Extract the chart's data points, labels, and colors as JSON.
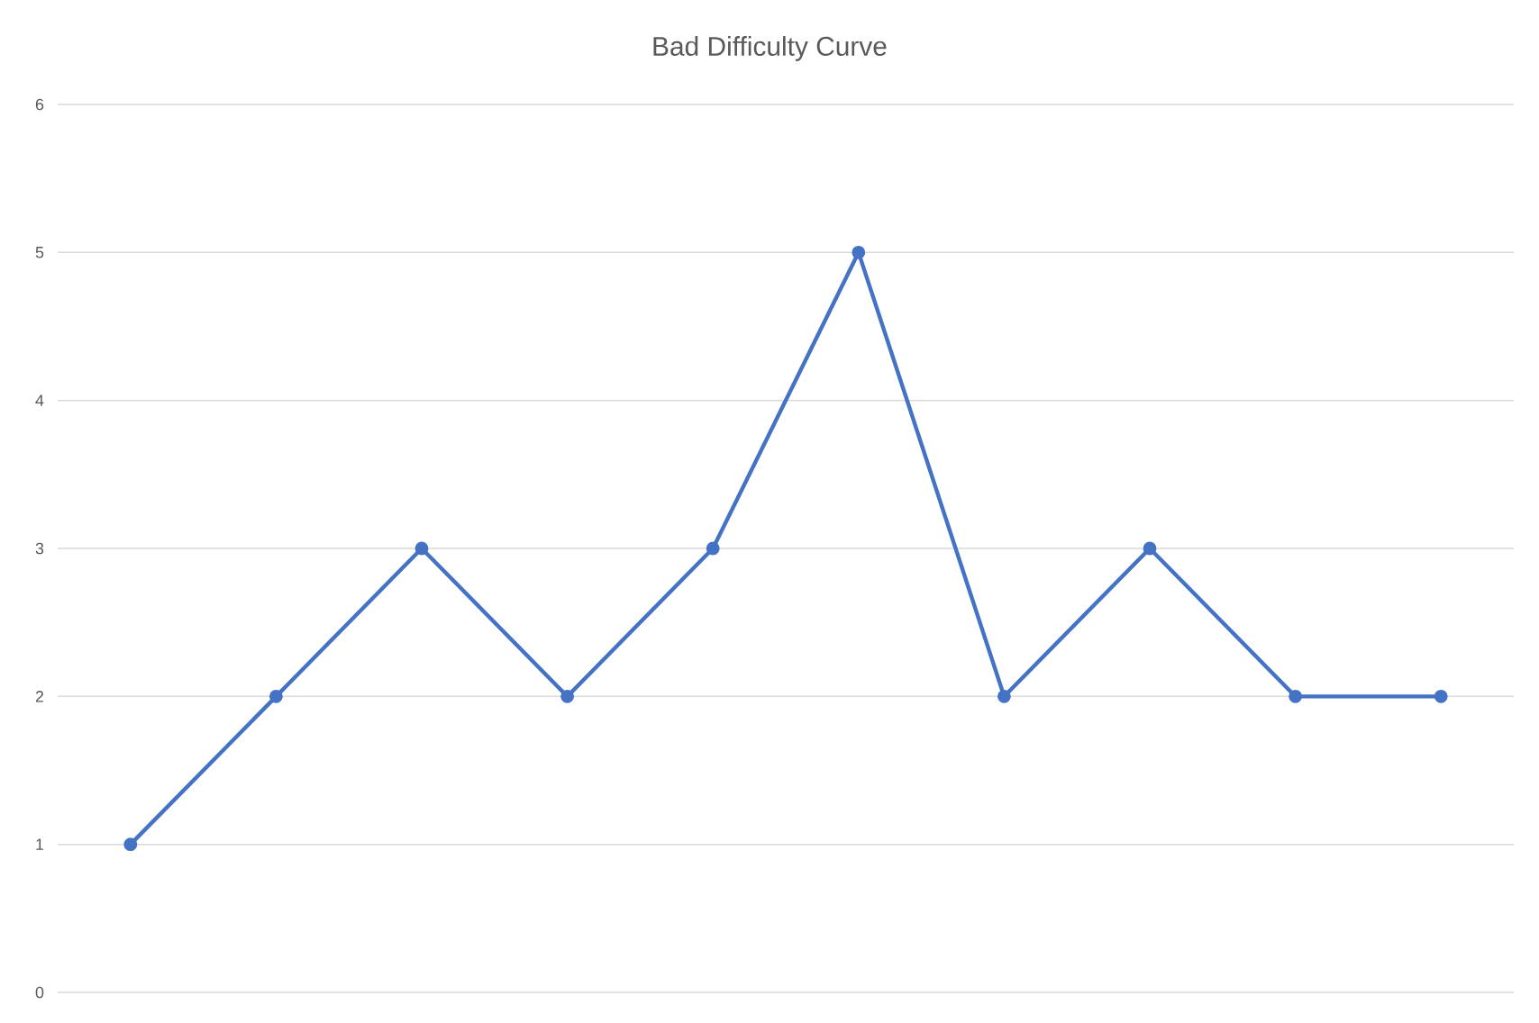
{
  "chart_data": {
    "type": "line",
    "title": "Bad Difficulty Curve",
    "categories": [
      null,
      null,
      null,
      null,
      null,
      null,
      null,
      null,
      null,
      null
    ],
    "values": [
      1,
      2,
      3,
      2,
      3,
      5,
      2,
      3,
      2,
      2
    ],
    "color": "#4472c4",
    "ylim": [
      0,
      6
    ],
    "yticks": [
      0,
      1,
      2,
      3,
      4,
      5,
      6
    ],
    "grid": "y",
    "marker": "circle"
  }
}
